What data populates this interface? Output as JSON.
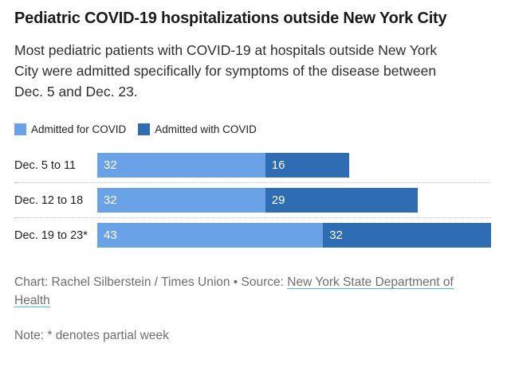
{
  "header": {
    "title": "Pediatric COVID-19 hospitalizations outside New York City",
    "subtitle": "Most pediatric patients with COVID-19 at hospitals outside New York City were admitted specifically for symptoms of the disease between Dec. 5 and Dec. 23."
  },
  "legend": {
    "items": [
      {
        "label": "Admitted for COVID",
        "color": "#6AA2E8"
      },
      {
        "label": "Admitted with COVID",
        "color": "#2E6DB4"
      }
    ]
  },
  "chart_data": {
    "type": "bar",
    "orientation": "horizontal",
    "stacked": true,
    "categories": [
      "Dec. 5 to 11",
      "Dec. 12 to 18",
      "Dec. 19 to 23*"
    ],
    "series": [
      {
        "name": "Admitted for COVID",
        "color": "#6AA2E8",
        "values": [
          32,
          32,
          43
        ]
      },
      {
        "name": "Admitted with COVID",
        "color": "#2E6DB4",
        "values": [
          16,
          29,
          32
        ]
      }
    ],
    "xlim": [
      0,
      75
    ],
    "grid": false,
    "legend_position": "top-left",
    "value_labels": "white numbers inside left edge of each segment"
  },
  "footer": {
    "credit": "Chart: Rachel Silberstein / Times Union • Source:",
    "source_link": "New York State Department of Health",
    "note": "Note: * denotes partial week"
  },
  "colors": {
    "admitted_for": "#6AA2E8",
    "admitted_with": "#2E6DB4",
    "title_text": "#1A1A1A",
    "body_text": "#2E2E2E",
    "muted_text": "#6E6E6E",
    "link_underline": "#3FC0C9",
    "row_separator": "#C7C7C7"
  }
}
